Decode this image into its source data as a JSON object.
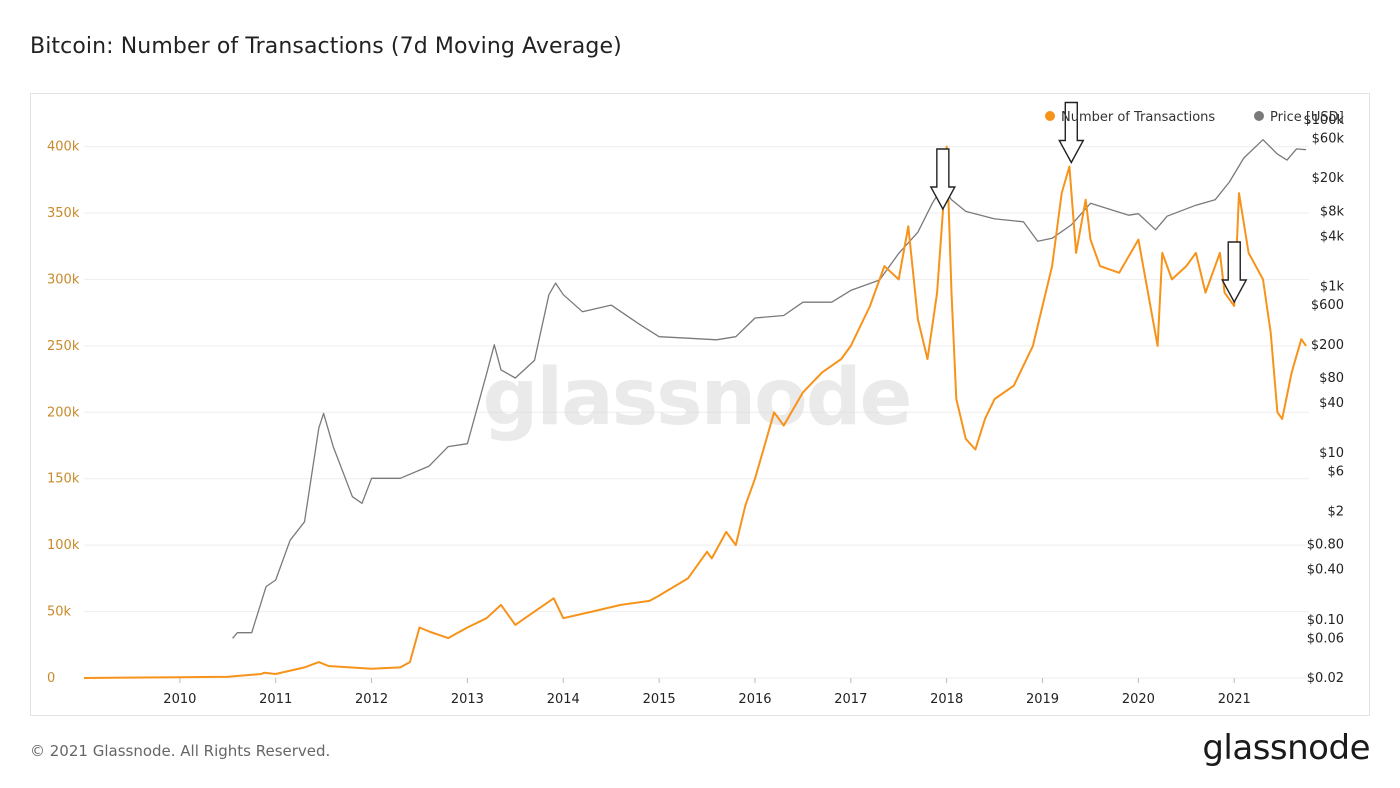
{
  "header": {
    "title": "Bitcoin: Number of Transactions (7d Moving Average)"
  },
  "footer": {
    "copyright": "© 2021 Glassnode. All Rights Reserved.",
    "brand": "glassnode"
  },
  "watermark": "glassnode",
  "colors": {
    "transactions": "#f7931a",
    "price": "#7a7a7a",
    "left_axis": "#c98a2a",
    "grid": "#eeeeee"
  },
  "chart_data": {
    "type": "line",
    "title": "Bitcoin: Number of Transactions (7d Moving Average)",
    "legend": {
      "placement": "top-right",
      "entries": [
        "Number of Transactions",
        "Price [USD]"
      ]
    },
    "xlim": [
      2009.0,
      2021.78
    ],
    "x_ticks": [
      "2010",
      "2011",
      "2012",
      "2013",
      "2014",
      "2015",
      "2016",
      "2017",
      "2018",
      "2019",
      "2020",
      "2021"
    ],
    "y_left": {
      "ylim": [
        0,
        420000
      ],
      "ticks": [
        0,
        50000,
        100000,
        150000,
        200000,
        250000,
        300000,
        350000,
        400000
      ],
      "tick_labels": [
        "0",
        "50k",
        "100k",
        "150k",
        "200k",
        "250k",
        "300k",
        "350k",
        "400k"
      ]
    },
    "y_right": {
      "scale": "log",
      "ylim": [
        0.02,
        100000
      ],
      "ticks": [
        0.02,
        0.06,
        0.1,
        0.4,
        0.8,
        2,
        6,
        10,
        40,
        80,
        200,
        600,
        1000,
        4000,
        8000,
        20000,
        60000,
        100000
      ],
      "tick_labels": [
        "$0.02",
        "$0.06",
        "$0.10",
        "$0.40",
        "$0.80",
        "$2",
        "$6",
        "$10",
        "$40",
        "$80",
        "$200",
        "$600",
        "$1k",
        "$4k",
        "$8k",
        "$20k",
        "$60k",
        "$100k"
      ]
    },
    "grid": true,
    "series": [
      {
        "name": "Number of Transactions",
        "axis": "left",
        "x": [
          2009.0,
          2010.0,
          2010.5,
          2010.85,
          2010.88,
          2011.0,
          2011.3,
          2011.45,
          2011.55,
          2012.0,
          2012.3,
          2012.4,
          2012.5,
          2012.6,
          2012.8,
          2013.0,
          2013.2,
          2013.35,
          2013.5,
          2013.6,
          2013.7,
          2013.9,
          2014.0,
          2014.3,
          2014.6,
          2014.9,
          2015.0,
          2015.3,
          2015.5,
          2015.55,
          2015.7,
          2015.8,
          2015.9,
          2016.0,
          2016.1,
          2016.2,
          2016.3,
          2016.5,
          2016.7,
          2016.9,
          2017.0,
          2017.2,
          2017.35,
          2017.5,
          2017.6,
          2017.7,
          2017.8,
          2017.9,
          2017.96,
          2018.0,
          2018.05,
          2018.1,
          2018.2,
          2018.3,
          2018.4,
          2018.5,
          2018.7,
          2018.9,
          2019.0,
          2019.1,
          2019.2,
          2019.28,
          2019.35,
          2019.45,
          2019.5,
          2019.6,
          2019.8,
          2020.0,
          2020.2,
          2020.25,
          2020.35,
          2020.5,
          2020.6,
          2020.7,
          2020.85,
          2020.9,
          2021.0,
          2021.05,
          2021.15,
          2021.3,
          2021.38,
          2021.45,
          2021.5,
          2021.6,
          2021.7,
          2021.75
        ],
        "y": [
          0,
          500,
          1000,
          3000,
          4000,
          3000,
          8000,
          12000,
          9000,
          7000,
          8000,
          12000,
          38000,
          35000,
          30000,
          38000,
          45000,
          55000,
          40000,
          45000,
          50000,
          60000,
          45000,
          50000,
          55000,
          58000,
          62000,
          75000,
          95000,
          90000,
          110000,
          100000,
          130000,
          150000,
          175000,
          200000,
          190000,
          215000,
          230000,
          240000,
          250000,
          280000,
          310000,
          300000,
          340000,
          270000,
          240000,
          290000,
          350000,
          400000,
          290000,
          210000,
          180000,
          172000,
          195000,
          210000,
          220000,
          250000,
          280000,
          310000,
          365000,
          385000,
          320000,
          360000,
          330000,
          310000,
          305000,
          330000,
          250000,
          320000,
          300000,
          310000,
          320000,
          290000,
          320000,
          290000,
          280000,
          365000,
          320000,
          300000,
          260000,
          200000,
          195000,
          230000,
          255000,
          250000
        ]
      },
      {
        "name": "Price [USD]",
        "axis": "right",
        "x": [
          2010.55,
          2010.6,
          2010.75,
          2010.9,
          2011.0,
          2011.15,
          2011.3,
          2011.45,
          2011.5,
          2011.6,
          2011.8,
          2011.9,
          2012.0,
          2012.3,
          2012.6,
          2012.8,
          2013.0,
          2013.2,
          2013.28,
          2013.35,
          2013.5,
          2013.7,
          2013.85,
          2013.92,
          2014.0,
          2014.2,
          2014.5,
          2014.8,
          2015.0,
          2015.3,
          2015.6,
          2015.8,
          2016.0,
          2016.3,
          2016.5,
          2016.8,
          2017.0,
          2017.3,
          2017.5,
          2017.7,
          2017.85,
          2017.96,
          2018.05,
          2018.2,
          2018.5,
          2018.8,
          2018.95,
          2019.1,
          2019.3,
          2019.5,
          2019.7,
          2019.9,
          2020.0,
          2020.18,
          2020.3,
          2020.6,
          2020.8,
          2020.95,
          2021.1,
          2021.3,
          2021.45,
          2021.55,
          2021.65,
          2021.75
        ],
        "y": [
          0.06,
          0.07,
          0.07,
          0.25,
          0.3,
          0.9,
          1.5,
          20,
          30,
          12,
          3,
          2.5,
          5,
          5,
          7,
          12,
          13,
          90,
          200,
          100,
          80,
          130,
          800,
          1100,
          800,
          500,
          600,
          350,
          250,
          240,
          230,
          250,
          420,
          450,
          650,
          650,
          900,
          1200,
          2500,
          4500,
          10000,
          16000,
          11000,
          8000,
          6500,
          6000,
          3500,
          3800,
          5500,
          10000,
          8500,
          7200,
          7500,
          4800,
          7000,
          9500,
          11000,
          18000,
          35000,
          58000,
          39000,
          33000,
          45000,
          44000
        ]
      }
    ],
    "annotations": [
      {
        "type": "arrow-down",
        "x": 2017.96,
        "target": "peak"
      },
      {
        "type": "arrow-down",
        "x": 2019.3,
        "target": "peak"
      },
      {
        "type": "arrow-down",
        "x": 2021.0,
        "target": "peak"
      }
    ]
  }
}
